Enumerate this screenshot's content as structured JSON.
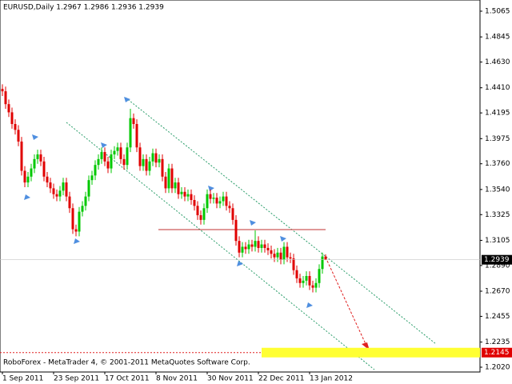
{
  "chart_data": {
    "type": "candlestick",
    "title": "EURUSD,Daily  1.2967 1.2986 1.2936 1.2939",
    "footer": "RoboForex - MetaTrader 4, © 2001-2011 MetaQuotes Software Corp.",
    "categories": [
      "1 Sep 2011",
      null,
      null,
      null,
      null,
      null,
      null,
      null,
      null,
      null,
      null,
      null,
      null,
      null,
      null,
      null,
      "23 Sep 2011",
      null,
      null,
      null,
      null,
      null,
      null,
      null,
      null,
      null,
      null,
      null,
      null,
      null,
      null,
      null,
      "17 Oct 2011",
      null,
      null,
      null,
      null,
      null,
      null,
      null,
      null,
      null,
      null,
      null,
      null,
      null,
      null,
      null,
      "8 Nov 2011",
      null,
      null,
      null,
      null,
      null,
      null,
      null,
      null,
      null,
      null,
      null,
      null,
      null,
      null,
      null,
      "30 Nov 2011",
      null,
      null,
      null,
      null,
      null,
      null,
      null,
      null,
      null,
      null,
      null,
      null,
      null,
      null,
      null,
      "22 Dec 2011",
      null,
      null,
      null,
      null,
      null,
      null,
      null,
      null,
      null,
      null,
      null,
      null,
      null,
      null,
      null,
      "13 Jan 2012",
      null,
      null,
      null,
      null,
      null
    ],
    "open": [
      1.44,
      1.438,
      1.427,
      1.42,
      1.41,
      1.405,
      1.395,
      1.37,
      1.36,
      1.365,
      1.372,
      1.38,
      1.384,
      1.378,
      1.365,
      1.36,
      1.355,
      1.35,
      1.348,
      1.353,
      1.36,
      1.348,
      1.338,
      1.32,
      1.318,
      1.335,
      1.34,
      1.348,
      1.362,
      1.366,
      1.375,
      1.38,
      1.386,
      1.378,
      1.372,
      1.384,
      1.387,
      1.39,
      1.38,
      1.375,
      1.39,
      1.415,
      1.41,
      1.39,
      1.374,
      1.38,
      1.37,
      1.378,
      1.385,
      1.377,
      1.38,
      1.365,
      1.355,
      1.372,
      1.355,
      1.36,
      1.35,
      1.352,
      1.348,
      1.35,
      1.345,
      1.34,
      1.332,
      1.328,
      1.338,
      1.35,
      1.346,
      1.347,
      1.342,
      1.344,
      1.348,
      1.34,
      1.338,
      1.328,
      1.31,
      1.3,
      1.305,
      1.303,
      1.307,
      1.305,
      1.31,
      1.304,
      1.307,
      1.304,
      1.302,
      1.299,
      1.296,
      1.3,
      1.294,
      1.305,
      1.296,
      1.295,
      1.285,
      1.278,
      1.274,
      1.276,
      1.28,
      1.272,
      1.27,
      1.274,
      1.286,
      1.2967
    ],
    "high": [
      1.444,
      1.442,
      1.431,
      1.424,
      1.414,
      1.409,
      1.399,
      1.374,
      1.369,
      1.376,
      1.384,
      1.388,
      1.388,
      1.382,
      1.369,
      1.364,
      1.359,
      1.354,
      1.357,
      1.364,
      1.364,
      1.352,
      1.342,
      1.324,
      1.339,
      1.344,
      1.352,
      1.366,
      1.37,
      1.379,
      1.384,
      1.39,
      1.39,
      1.382,
      1.388,
      1.391,
      1.394,
      1.394,
      1.384,
      1.394,
      1.423,
      1.419,
      1.414,
      1.394,
      1.384,
      1.384,
      1.382,
      1.389,
      1.389,
      1.384,
      1.384,
      1.369,
      1.376,
      1.376,
      1.364,
      1.364,
      1.356,
      1.356,
      1.354,
      1.354,
      1.349,
      1.344,
      1.336,
      1.342,
      1.354,
      1.354,
      1.351,
      1.351,
      1.348,
      1.352,
      1.352,
      1.344,
      1.342,
      1.332,
      1.314,
      1.309,
      1.309,
      1.311,
      1.311,
      1.319,
      1.314,
      1.311,
      1.311,
      1.308,
      1.306,
      1.303,
      1.304,
      1.304,
      1.309,
      1.309,
      1.3,
      1.299,
      1.289,
      1.282,
      1.28,
      1.284,
      1.284,
      1.276,
      1.278,
      1.29,
      1.3,
      1.2986
    ],
    "low": [
      1.434,
      1.423,
      1.416,
      1.406,
      1.401,
      1.391,
      1.366,
      1.356,
      1.356,
      1.361,
      1.368,
      1.376,
      1.374,
      1.361,
      1.356,
      1.351,
      1.346,
      1.344,
      1.344,
      1.349,
      1.344,
      1.334,
      1.316,
      1.314,
      1.314,
      1.331,
      1.336,
      1.344,
      1.358,
      1.362,
      1.371,
      1.376,
      1.374,
      1.368,
      1.368,
      1.38,
      1.383,
      1.376,
      1.371,
      1.371,
      1.386,
      1.406,
      1.386,
      1.37,
      1.37,
      1.366,
      1.366,
      1.374,
      1.373,
      1.373,
      1.361,
      1.351,
      1.351,
      1.351,
      1.351,
      1.346,
      1.346,
      1.344,
      1.344,
      1.341,
      1.336,
      1.328,
      1.324,
      1.324,
      1.334,
      1.342,
      1.342,
      1.338,
      1.338,
      1.34,
      1.336,
      1.334,
      1.324,
      1.306,
      1.296,
      1.296,
      1.299,
      1.299,
      1.301,
      1.301,
      1.3,
      1.3,
      1.3,
      1.298,
      1.295,
      1.292,
      1.292,
      1.29,
      1.29,
      1.292,
      1.291,
      1.281,
      1.274,
      1.27,
      1.27,
      1.272,
      1.268,
      1.266,
      1.266,
      1.27,
      1.282,
      1.2936
    ],
    "close": [
      1.438,
      1.427,
      1.42,
      1.41,
      1.405,
      1.395,
      1.37,
      1.36,
      1.365,
      1.372,
      1.38,
      1.384,
      1.378,
      1.365,
      1.36,
      1.355,
      1.35,
      1.348,
      1.353,
      1.36,
      1.348,
      1.338,
      1.32,
      1.318,
      1.335,
      1.34,
      1.348,
      1.362,
      1.366,
      1.375,
      1.38,
      1.386,
      1.378,
      1.372,
      1.384,
      1.387,
      1.39,
      1.38,
      1.375,
      1.39,
      1.415,
      1.41,
      1.39,
      1.374,
      1.38,
      1.37,
      1.378,
      1.385,
      1.377,
      1.38,
      1.365,
      1.355,
      1.372,
      1.355,
      1.36,
      1.35,
      1.352,
      1.348,
      1.35,
      1.345,
      1.34,
      1.332,
      1.328,
      1.338,
      1.35,
      1.346,
      1.347,
      1.342,
      1.344,
      1.348,
      1.34,
      1.338,
      1.328,
      1.31,
      1.3,
      1.305,
      1.303,
      1.307,
      1.305,
      1.31,
      1.304,
      1.307,
      1.304,
      1.302,
      1.299,
      1.296,
      1.3,
      1.294,
      1.305,
      1.296,
      1.295,
      1.285,
      1.278,
      1.274,
      1.276,
      1.28,
      1.272,
      1.27,
      1.274,
      1.286,
      1.2967,
      1.2939
    ],
    "up_color": "#00c800",
    "down_color": "#e00000",
    "ylim": [
      1.1979,
      1.5147
    ],
    "yticks": [
      {
        "value": 1.5065,
        "label": "1.5065"
      },
      {
        "value": 1.4845,
        "label": "1.4845"
      },
      {
        "value": 1.463,
        "label": "1.4630"
      },
      {
        "value": 1.441,
        "label": "1.4410"
      },
      {
        "value": 1.4195,
        "label": "1.4195"
      },
      {
        "value": 1.3975,
        "label": "1.3975"
      },
      {
        "value": 1.376,
        "label": "1.3760"
      },
      {
        "value": 1.354,
        "label": "1.3540"
      },
      {
        "value": 1.3325,
        "label": "1.3325"
      },
      {
        "value": 1.3105,
        "label": "1.3105"
      },
      {
        "value": 1.289,
        "label": "1.2890"
      },
      {
        "value": 1.267,
        "label": "1.2670"
      },
      {
        "value": 1.2455,
        "label": "1.2455"
      },
      {
        "value": 1.2235,
        "label": "1.2235"
      },
      {
        "value": 1.202,
        "label": "1.2020"
      }
    ],
    "last_price": {
      "value": 1.2939,
      "label": "1.2939"
    },
    "target": {
      "value": 1.2145,
      "label": "1.2145"
    }
  }
}
